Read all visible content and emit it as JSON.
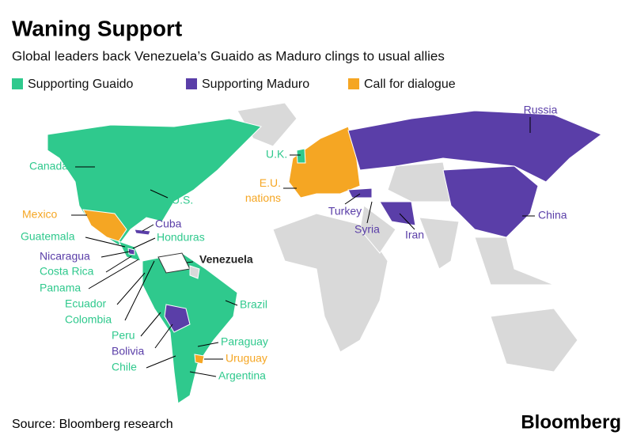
{
  "header": {
    "title": "Waning Support",
    "subtitle": "Global leaders back Venezuela’s Guaido as Maduro clings to usual allies"
  },
  "legend": [
    {
      "label": "Supporting Guaido",
      "color": "#2fc98d"
    },
    {
      "label": "Supporting Maduro",
      "color": "#5a3ea8"
    },
    {
      "label": "Call for dialogue",
      "color": "#f5a623"
    }
  ],
  "labels": [
    {
      "text": "Russia",
      "group": 1
    },
    {
      "text": "Canada",
      "group": 0
    },
    {
      "text": "U.K.",
      "group": 0
    },
    {
      "text": "E.U. nations",
      "group": 2
    },
    {
      "text": "U.S.",
      "group": 0
    },
    {
      "text": "Mexico",
      "group": 2
    },
    {
      "text": "Cuba",
      "group": 1
    },
    {
      "text": "Honduras",
      "group": 0
    },
    {
      "text": "Guatemala",
      "group": 0
    },
    {
      "text": "Turkey",
      "group": 1
    },
    {
      "text": "China",
      "group": 1
    },
    {
      "text": "Syria",
      "group": 1
    },
    {
      "text": "Iran",
      "group": 1
    },
    {
      "text": "Nicaragua",
      "group": 1
    },
    {
      "text": "Venezuela"
    },
    {
      "text": "Costa Rica",
      "group": 0
    },
    {
      "text": "Panama",
      "group": 0
    },
    {
      "text": "Ecuador",
      "group": 0
    },
    {
      "text": "Brazil",
      "group": 0
    },
    {
      "text": "Colombia",
      "group": 0
    },
    {
      "text": "Peru",
      "group": 0
    },
    {
      "text": "Paraguay",
      "group": 0
    },
    {
      "text": "Bolivia",
      "group": 1
    },
    {
      "text": "Uruguay",
      "group": 2
    },
    {
      "text": "Chile",
      "group": 0
    },
    {
      "text": "Argentina",
      "group": 0
    }
  ],
  "footer": {
    "source": "Source: Bloomberg research",
    "brand": "Bloomberg"
  }
}
